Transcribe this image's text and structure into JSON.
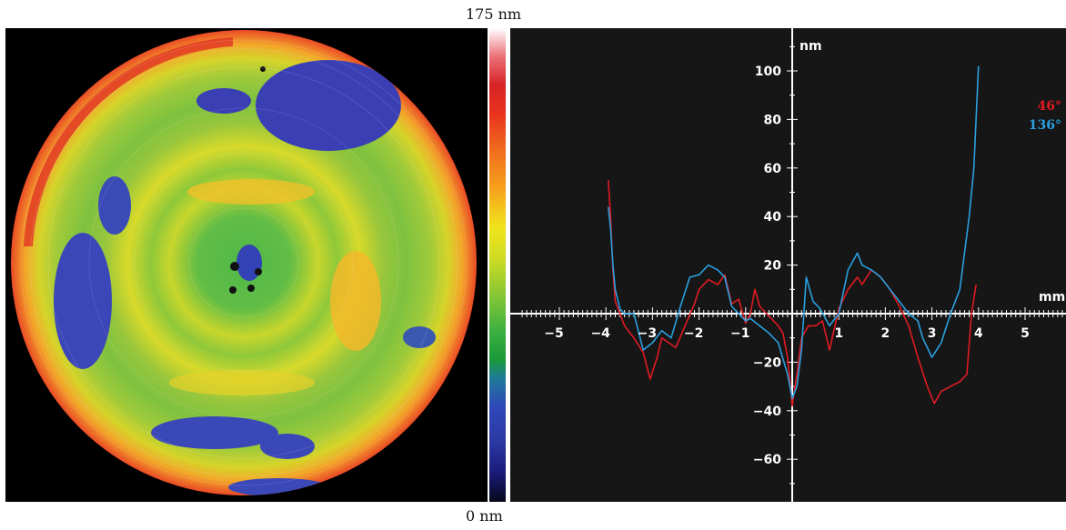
{
  "colorbar": {
    "max_label": "175 nm",
    "min_label": "0 nm"
  },
  "colors": {
    "series_46": "#e01a22",
    "series_136": "#2aa0e0",
    "plot_background": "#161616",
    "axis": "#ffffff"
  },
  "chart_data": [
    {
      "type": "heatmap",
      "description_of_scale": "surface height map of circular optic",
      "colorscale_range": [
        0,
        175
      ],
      "colorscale_unit": "nm"
    },
    {
      "type": "line",
      "xlabel": "mm",
      "ylabel": "nm",
      "xlim": [
        -5.8,
        5.8
      ],
      "ylim": [
        -75,
        115
      ],
      "x_ticks": [
        -5,
        -4,
        -3,
        -2,
        -1,
        1,
        2,
        3,
        4,
        5
      ],
      "y_ticks": [
        -60,
        -40,
        -20,
        20,
        40,
        60,
        80,
        100
      ],
      "legend_position": "top-right",
      "series": [
        {
          "name": "46°",
          "x": [
            -3.95,
            -3.9,
            -3.85,
            -3.8,
            -3.7,
            -3.6,
            -3.4,
            -3.2,
            -3.05,
            -2.9,
            -2.8,
            -2.65,
            -2.5,
            -2.3,
            -2.1,
            -2.0,
            -1.8,
            -1.6,
            -1.45,
            -1.3,
            -1.15,
            -1.0,
            -0.9,
            -0.8,
            -0.7,
            -0.55,
            -0.4,
            -0.3,
            -0.2,
            -0.1,
            0.0,
            0.1,
            0.2,
            0.35,
            0.5,
            0.65,
            0.8,
            1.0,
            1.2,
            1.4,
            1.5,
            1.7,
            1.9,
            2.1,
            2.3,
            2.5,
            2.7,
            2.9,
            3.05,
            3.2,
            3.4,
            3.6,
            3.75,
            3.85,
            3.95
          ],
          "values": [
            55,
            40,
            18,
            5,
            0,
            -5,
            -10,
            -16,
            -27,
            -18,
            -10,
            -12,
            -14,
            -5,
            4,
            10,
            14,
            12,
            16,
            4,
            6,
            -4,
            0,
            10,
            3,
            0,
            -3,
            -5,
            -8,
            -18,
            -38,
            -25,
            -10,
            -5,
            -5,
            -3,
            -15,
            2,
            10,
            15,
            12,
            18,
            15,
            10,
            3,
            -5,
            -18,
            -30,
            -37,
            -32,
            -30,
            -28,
            -25,
            0,
            12
          ]
        },
        {
          "name": "136°",
          "x": [
            -3.95,
            -3.9,
            -3.85,
            -3.8,
            -3.7,
            -3.6,
            -3.4,
            -3.2,
            -3.0,
            -2.8,
            -2.6,
            -2.4,
            -2.2,
            -2.0,
            -1.8,
            -1.6,
            -1.45,
            -1.3,
            -1.15,
            -1.0,
            -0.9,
            -0.7,
            -0.5,
            -0.3,
            -0.1,
            0.0,
            0.1,
            0.2,
            0.3,
            0.45,
            0.6,
            0.8,
            1.0,
            1.2,
            1.4,
            1.5,
            1.7,
            1.9,
            2.1,
            2.3,
            2.5,
            2.7,
            2.8,
            3.0,
            3.2,
            3.4,
            3.6,
            3.7,
            3.8,
            3.9,
            4.0
          ],
          "values": [
            44,
            35,
            20,
            10,
            2,
            0,
            0,
            -15,
            -12,
            -7,
            -10,
            3,
            15,
            16,
            20,
            18,
            15,
            3,
            0,
            -3,
            -2,
            -5,
            -8,
            -12,
            -25,
            -35,
            -30,
            -15,
            15,
            5,
            2,
            -5,
            0,
            18,
            25,
            20,
            18,
            15,
            10,
            5,
            0,
            -3,
            -10,
            -18,
            -12,
            0,
            10,
            25,
            40,
            60,
            102
          ]
        }
      ]
    }
  ]
}
